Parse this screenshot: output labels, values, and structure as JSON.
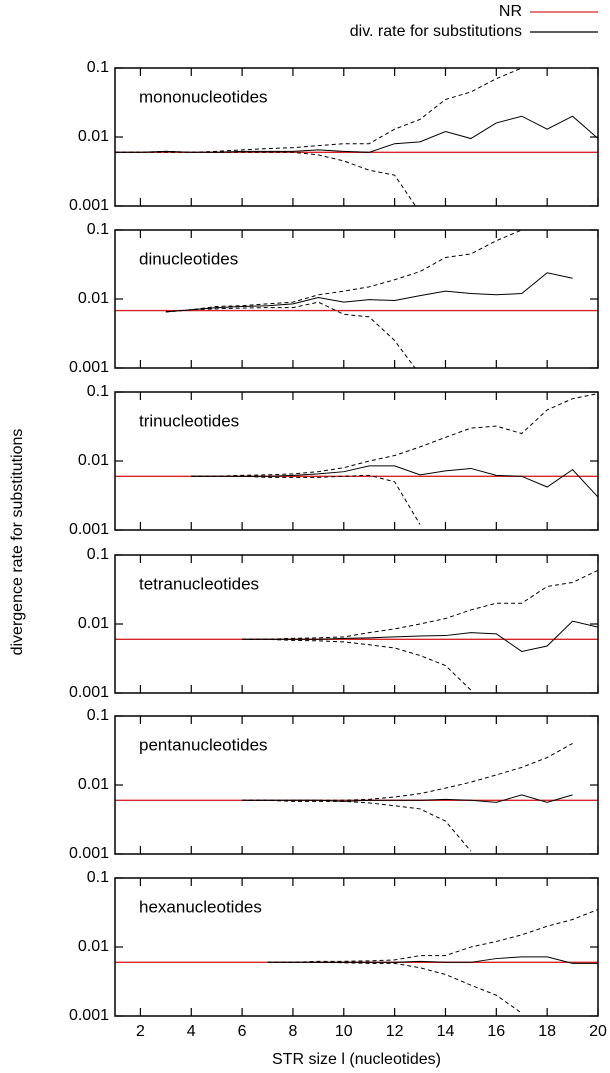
{
  "chart_data": [
    {
      "type": "line",
      "title": "mononucleotides",
      "y_label": "divergence rate for substitutions",
      "log_y": true,
      "x": [
        1,
        2,
        3,
        4,
        5,
        6,
        7,
        8,
        9,
        10,
        11,
        12,
        13,
        14,
        15,
        16,
        17,
        18,
        19,
        20
      ],
      "xlim": [
        1,
        20
      ],
      "xticks": [
        2,
        4,
        6,
        8,
        10,
        12,
        14,
        16,
        18,
        20
      ],
      "ylim": [
        0.001,
        0.1
      ],
      "yticks": [
        0.001,
        0.01,
        0.1
      ],
      "hline": {
        "name": "NR",
        "color": "#d62728",
        "value": 0.006
      },
      "series": [
        {
          "name": "div. rate for substitutions",
          "color": "#000000",
          "dash": false,
          "values": [
            0.006,
            0.006,
            0.0062,
            0.006,
            0.006,
            0.0062,
            0.0062,
            0.0062,
            0.0065,
            0.0062,
            0.006,
            0.008,
            0.0085,
            0.012,
            0.0095,
            0.016,
            0.02,
            0.013,
            0.02,
            0.0095
          ]
        },
        {
          "color": "#000000",
          "dash": true,
          "values": [
            0.006,
            0.006,
            0.0062,
            0.006,
            0.0062,
            0.0065,
            0.0068,
            0.007,
            0.0075,
            0.008,
            0.008,
            0.013,
            0.018,
            0.035,
            0.045,
            0.07,
            0.1,
            null,
            null,
            null
          ]
        },
        {
          "color": "#000000",
          "dash": true,
          "values": [
            0.006,
            0.006,
            0.006,
            0.006,
            0.006,
            0.006,
            0.006,
            0.006,
            0.0055,
            0.0045,
            0.0033,
            0.0028,
            0.0008,
            null,
            null,
            null,
            null,
            null,
            null,
            null
          ]
        }
      ]
    },
    {
      "type": "line",
      "title": "dinucleotides",
      "log_y": true,
      "x": [
        1,
        2,
        3,
        4,
        5,
        6,
        7,
        8,
        9,
        10,
        11,
        12,
        13,
        14,
        15,
        16,
        17,
        18,
        19,
        20
      ],
      "xlim": [
        1,
        20
      ],
      "xticks": [
        2,
        4,
        6,
        8,
        10,
        12,
        14,
        16,
        18,
        20
      ],
      "ylim": [
        0.001,
        0.1
      ],
      "yticks": [
        0.001,
        0.01,
        0.1
      ],
      "hline": {
        "color": "#d62728",
        "value": 0.0068
      },
      "series": [
        {
          "color": "#000000",
          "dash": false,
          "values": [
            null,
            null,
            0.0065,
            0.007,
            0.0075,
            0.0078,
            0.008,
            0.0085,
            0.0105,
            0.009,
            0.0098,
            0.0095,
            0.0112,
            0.013,
            0.012,
            0.0115,
            0.012,
            0.024,
            0.02,
            null
          ]
        },
        {
          "color": "#000000",
          "dash": true,
          "values": [
            null,
            null,
            0.0065,
            0.007,
            0.0078,
            0.008,
            0.0085,
            0.009,
            0.0115,
            0.013,
            0.015,
            0.019,
            0.025,
            0.04,
            0.045,
            0.07,
            0.1,
            null,
            null,
            null
          ]
        },
        {
          "color": "#000000",
          "dash": true,
          "values": [
            null,
            null,
            0.0065,
            0.007,
            0.0072,
            0.0074,
            0.0075,
            0.0075,
            0.009,
            0.006,
            0.0055,
            0.0025,
            0.0008,
            null,
            null,
            null,
            null,
            null,
            null,
            null
          ]
        }
      ]
    },
    {
      "type": "line",
      "title": "trinucleotides",
      "log_y": true,
      "x": [
        1,
        2,
        3,
        4,
        5,
        6,
        7,
        8,
        9,
        10,
        11,
        12,
        13,
        14,
        15,
        16,
        17,
        18,
        19,
        20
      ],
      "xlim": [
        1,
        20
      ],
      "xticks": [
        2,
        4,
        6,
        8,
        10,
        12,
        14,
        16,
        18,
        20
      ],
      "ylim": [
        0.001,
        0.1
      ],
      "yticks": [
        0.001,
        0.01,
        0.1
      ],
      "hline": {
        "color": "#d62728",
        "value": 0.006
      },
      "series": [
        {
          "color": "#000000",
          "dash": false,
          "values": [
            null,
            null,
            null,
            0.006,
            0.006,
            0.006,
            0.006,
            0.0062,
            0.0065,
            0.007,
            0.0085,
            0.0085,
            0.0063,
            0.0072,
            0.0078,
            0.0062,
            0.006,
            0.0042,
            0.0075,
            0.003
          ]
        },
        {
          "color": "#000000",
          "dash": true,
          "values": [
            null,
            null,
            null,
            0.006,
            0.006,
            0.0062,
            0.0063,
            0.0065,
            0.007,
            0.008,
            0.01,
            0.012,
            0.016,
            0.022,
            0.03,
            0.032,
            0.025,
            0.055,
            0.08,
            0.095
          ]
        },
        {
          "color": "#000000",
          "dash": true,
          "values": [
            null,
            null,
            null,
            0.006,
            0.006,
            0.006,
            0.0058,
            0.0058,
            0.0058,
            0.006,
            0.0062,
            0.005,
            0.0012,
            null,
            null,
            null,
            null,
            null,
            null,
            null
          ]
        }
      ]
    },
    {
      "type": "line",
      "title": "tetranucleotides",
      "log_y": true,
      "x": [
        1,
        2,
        3,
        4,
        5,
        6,
        7,
        8,
        9,
        10,
        11,
        12,
        13,
        14,
        15,
        16,
        17,
        18,
        19,
        20
      ],
      "xlim": [
        1,
        20
      ],
      "xticks": [
        2,
        4,
        6,
        8,
        10,
        12,
        14,
        16,
        18,
        20
      ],
      "ylim": [
        0.001,
        0.1
      ],
      "yticks": [
        0.001,
        0.01,
        0.1
      ],
      "hline": {
        "color": "#d62728",
        "value": 0.006
      },
      "series": [
        {
          "color": "#000000",
          "dash": false,
          "values": [
            null,
            null,
            null,
            null,
            null,
            0.006,
            0.006,
            0.006,
            0.006,
            0.0062,
            0.0063,
            0.0065,
            0.0067,
            0.0068,
            0.0075,
            0.0072,
            0.004,
            0.0048,
            0.011,
            0.009
          ]
        },
        {
          "color": "#000000",
          "dash": true,
          "values": [
            null,
            null,
            null,
            null,
            null,
            0.006,
            0.006,
            0.0062,
            0.0063,
            0.0065,
            0.0075,
            0.0085,
            0.01,
            0.012,
            0.016,
            0.02,
            0.02,
            0.035,
            0.04,
            0.06
          ]
        },
        {
          "color": "#000000",
          "dash": true,
          "values": [
            null,
            null,
            null,
            null,
            null,
            0.006,
            0.006,
            0.0058,
            0.0057,
            0.0055,
            0.005,
            0.0045,
            0.0035,
            0.0025,
            0.0011,
            null,
            null,
            null,
            null,
            null
          ]
        }
      ]
    },
    {
      "type": "line",
      "title": "pentanucleotides",
      "log_y": true,
      "x": [
        1,
        2,
        3,
        4,
        5,
        6,
        7,
        8,
        9,
        10,
        11,
        12,
        13,
        14,
        15,
        16,
        17,
        18,
        19,
        20
      ],
      "xlim": [
        1,
        20
      ],
      "xticks": [
        2,
        4,
        6,
        8,
        10,
        12,
        14,
        16,
        18,
        20
      ],
      "ylim": [
        0.001,
        0.1
      ],
      "yticks": [
        0.001,
        0.01,
        0.1
      ],
      "hline": {
        "color": "#d62728",
        "value": 0.006
      },
      "series": [
        {
          "color": "#000000",
          "dash": false,
          "values": [
            null,
            null,
            null,
            null,
            null,
            0.006,
            0.006,
            0.006,
            0.006,
            0.0058,
            0.006,
            0.006,
            0.006,
            0.0062,
            0.006,
            0.0056,
            0.0072,
            0.0056,
            0.0072,
            null
          ]
        },
        {
          "color": "#000000",
          "dash": true,
          "values": [
            null,
            null,
            null,
            null,
            null,
            0.006,
            0.006,
            0.006,
            0.006,
            0.006,
            0.0062,
            0.0067,
            0.0075,
            0.009,
            0.011,
            0.014,
            0.018,
            0.025,
            0.04,
            null
          ]
        },
        {
          "color": "#000000",
          "dash": true,
          "values": [
            null,
            null,
            null,
            null,
            null,
            0.006,
            0.006,
            0.0058,
            0.0058,
            0.0058,
            0.0055,
            0.005,
            0.0045,
            0.003,
            0.0011,
            null,
            null,
            null,
            null,
            null
          ]
        }
      ]
    },
    {
      "type": "line",
      "title": "hexanucleotides",
      "x_label": "STR size l (nucleotides)",
      "log_y": true,
      "x": [
        1,
        2,
        3,
        4,
        5,
        6,
        7,
        8,
        9,
        10,
        11,
        12,
        13,
        14,
        15,
        16,
        17,
        18,
        19,
        20
      ],
      "xlim": [
        1,
        20
      ],
      "xticks": [
        2,
        4,
        6,
        8,
        10,
        12,
        14,
        16,
        18,
        20
      ],
      "ylim": [
        0.001,
        0.1
      ],
      "yticks": [
        0.001,
        0.01,
        0.1
      ],
      "hline": {
        "color": "#d62728",
        "value": 0.006
      },
      "series": [
        {
          "color": "#000000",
          "dash": false,
          "values": [
            null,
            null,
            null,
            null,
            null,
            null,
            0.006,
            0.006,
            0.006,
            0.006,
            0.006,
            0.006,
            0.0062,
            0.006,
            0.006,
            0.0068,
            0.0072,
            0.0072,
            0.0058,
            0.0058
          ]
        },
        {
          "color": "#000000",
          "dash": true,
          "values": [
            null,
            null,
            null,
            null,
            null,
            null,
            0.006,
            0.006,
            0.0062,
            0.0062,
            0.0063,
            0.0065,
            0.0075,
            0.0075,
            0.01,
            0.012,
            0.015,
            0.02,
            0.025,
            0.035
          ]
        },
        {
          "color": "#000000",
          "dash": true,
          "values": [
            null,
            null,
            null,
            null,
            null,
            null,
            0.006,
            0.006,
            0.006,
            0.0059,
            0.0058,
            0.0058,
            0.005,
            0.004,
            0.0028,
            0.002,
            0.0011,
            null,
            null,
            null
          ]
        }
      ]
    }
  ]
}
